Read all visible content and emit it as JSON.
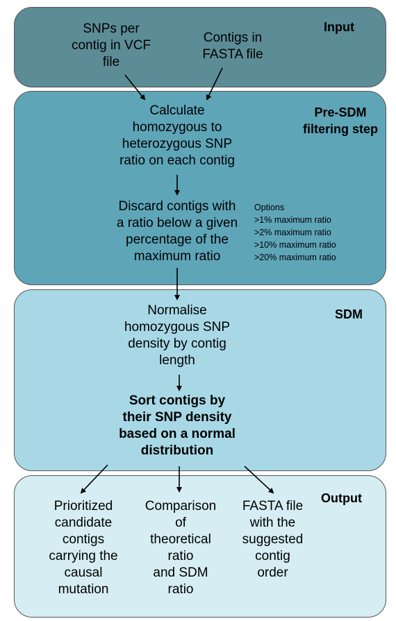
{
  "panels": {
    "input": "Input",
    "pre_sdm": [
      "Pre-SDM",
      "filtering step"
    ],
    "sdm": "SDM",
    "output": "Output"
  },
  "nodes": {
    "snps_vcf": [
      "SNPs per",
      "contig in VCF",
      "file"
    ],
    "contigs_fasta": [
      "Contigs in",
      "FASTA file"
    ],
    "calculate": [
      "Calculate",
      "homozygous to",
      "heterozygous SNP",
      "ratio on each contig"
    ],
    "discard": [
      "Discard contigs with",
      "a ratio below a given",
      "percentage of the",
      "maximum ratio"
    ],
    "normalise": [
      "Normalise",
      "homozygous SNP",
      "density by contig",
      "length"
    ],
    "sort": [
      "Sort contigs by",
      "their SNP density",
      "based on a normal",
      "distribution"
    ],
    "prioritized": [
      "Prioritized",
      "candidate",
      "contigs",
      "carrying the",
      "causal",
      "mutation"
    ],
    "comparison": [
      "Comparison",
      "of",
      "theoretical",
      "ratio",
      "and SDM",
      "ratio"
    ],
    "fasta_out": [
      "FASTA file",
      "with the",
      "suggested",
      "contig",
      "order"
    ]
  },
  "options": {
    "heading": "Options",
    "items": [
      ">1% maximum ratio",
      ">2% maximum ratio",
      ">10% maximum ratio",
      ">20% maximum ratio"
    ]
  },
  "colors": {
    "input": "#5c8c96",
    "pre_sdm": "#5ea5b8",
    "sdm": "#a8d8e6",
    "output": "#d6edf4"
  }
}
